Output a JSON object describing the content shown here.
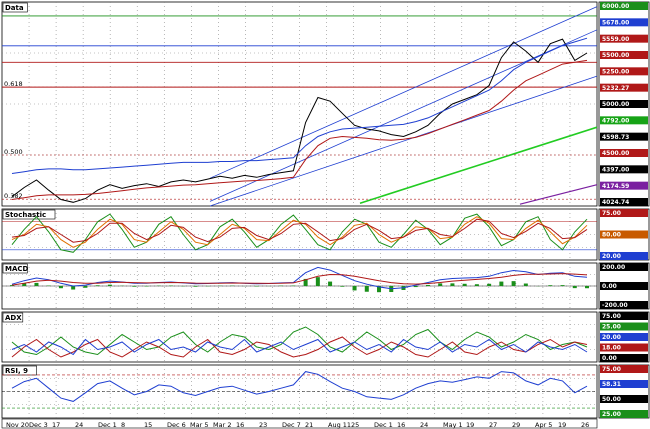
{
  "chart_data": {
    "type": "line",
    "title": "Data",
    "panes": [
      {
        "name": "Data",
        "fib_labels": [
          "0.618",
          "0.500",
          "0.382"
        ],
        "price_tags": [
          {
            "text": "6000.00",
            "color": "#1a8f1a"
          },
          {
            "text": "5678.00",
            "color": "#1f3fd1"
          },
          {
            "text": "5559.00",
            "color": "#b01818"
          },
          {
            "text": "5500.00",
            "color": "#b01818"
          },
          {
            "text": "5250.00",
            "color": "#b01818"
          },
          {
            "text": "5232.27",
            "color": "#b01818"
          },
          {
            "text": "5000.00",
            "color": "#000000"
          },
          {
            "text": "4792.00",
            "color": "#16a316"
          },
          {
            "text": "4598.73",
            "color": "#000000"
          },
          {
            "text": "4500.00",
            "color": "#b01818"
          },
          {
            "text": "4397.00",
            "color": "#000000"
          },
          {
            "text": "4174.59",
            "color": "#7a1fa0"
          },
          {
            "text": "4024.74",
            "color": "#000000"
          }
        ],
        "ylim": [
          3950,
          6150
        ],
        "series": [
          {
            "values": [
              4050,
              4150,
              4230,
              4120,
              4020,
              3990,
              4030,
              4120,
              4180,
              4140,
              4170,
              4190,
              4160,
              4210,
              4230,
              4210,
              4240,
              4270,
              4250,
              4280,
              4260,
              4290,
              4310,
              4330,
              4850,
              5120,
              5080,
              4950,
              4820,
              4780,
              4760,
              4720,
              4700,
              4750,
              4820,
              4950,
              5050,
              5100,
              5150,
              5250,
              5550,
              5720,
              5620,
              5500,
              5700,
              5750,
              5520,
              5600
            ],
            "color": "#000000"
          },
          {
            "values": [
              4020,
              4040,
              4060,
              4070,
              4070,
              4070,
              4075,
              4085,
              4100,
              4115,
              4130,
              4145,
              4155,
              4165,
              4175,
              4180,
              4190,
              4200,
              4210,
              4220,
              4225,
              4235,
              4245,
              4260,
              4450,
              4600,
              4680,
              4700,
              4690,
              4680,
              4665,
              4660,
              4670,
              4690,
              4730,
              4780,
              4830,
              4880,
              4930,
              4980,
              5080,
              5200,
              5300,
              5360,
              5420,
              5480,
              5500,
              5520
            ],
            "color": "#b01818"
          },
          {
            "values": [
              4300,
              4320,
              4340,
              4350,
              4350,
              4340,
              4340,
              4350,
              4360,
              4370,
              4380,
              4390,
              4400,
              4410,
              4420,
              4420,
              4420,
              4430,
              4430,
              4440,
              4440,
              4450,
              4460,
              4470,
              4600,
              4700,
              4750,
              4780,
              4790,
              4800,
              4810,
              4820,
              4830,
              4860,
              4900,
              4960,
              5020,
              5080,
              5140,
              5200,
              5300,
              5420,
              5500,
              5560,
              5620,
              5680,
              5720,
              5760
            ],
            "color": "#1f3fd1"
          }
        ]
      },
      {
        "name": "Stochastic",
        "price_tags": [
          {
            "text": "75.00",
            "color": "#b01818"
          },
          {
            "text": "80.00",
            "color": "#c85a00"
          },
          {
            "text": "20.00",
            "color": "#1f3fd1"
          }
        ],
        "ylim": [
          0,
          100
        ],
        "series": [
          {
            "values": [
              30,
              60,
              85,
              55,
              20,
              15,
              40,
              75,
              90,
              60,
              25,
              35,
              70,
              85,
              50,
              20,
              30,
              65,
              80,
              55,
              25,
              40,
              70,
              88,
              60,
              30,
              20,
              55,
              80,
              70,
              35,
              25,
              50,
              78,
              60,
              30,
              45,
              82,
              90,
              65,
              28,
              40,
              75,
              85,
              40,
              20,
              55,
              80
            ],
            "color": "#1a8f1a"
          },
          {
            "values": [
              40,
              50,
              70,
              65,
              40,
              25,
              35,
              60,
              80,
              70,
              40,
              35,
              55,
              75,
              60,
              35,
              30,
              50,
              70,
              62,
              40,
              38,
              58,
              78,
              70,
              45,
              30,
              45,
              68,
              72,
              50,
              35,
              45,
              65,
              62,
              42,
              45,
              70,
              85,
              72,
              42,
              40,
              62,
              78,
              55,
              32,
              45,
              68
            ],
            "color": "#e07000"
          },
          {
            "values": [
              45,
              48,
              62,
              65,
              50,
              35,
              38,
              52,
              72,
              72,
              52,
              40,
              50,
              68,
              64,
              45,
              36,
              45,
              62,
              64,
              48,
              40,
              52,
              70,
              72,
              55,
              38,
              42,
              60,
              70,
              58,
              42,
              45,
              58,
              62,
              50,
              46,
              62,
              80,
              76,
              52,
              44,
              56,
              72,
              62,
              42,
              44,
              60
            ],
            "color": "#b01818"
          }
        ]
      },
      {
        "name": "MACD",
        "price_tags": [
          {
            "text": "200.00",
            "color": "#000000"
          },
          {
            "text": "0.00",
            "color": "#000000"
          },
          {
            "text": "-200.00",
            "color": "#000000"
          }
        ],
        "ylim": [
          -260,
          260
        ],
        "series": [
          {
            "values": [
              20,
              60,
              90,
              70,
              30,
              0,
              10,
              40,
              55,
              45,
              30,
              30,
              40,
              45,
              35,
              25,
              28,
              35,
              38,
              32,
              25,
              28,
              35,
              40,
              150,
              210,
              180,
              120,
              60,
              20,
              -10,
              -30,
              -20,
              10,
              40,
              70,
              85,
              90,
              95,
              110,
              150,
              175,
              160,
              130,
              145,
              150,
              110,
              100
            ],
            "color": "#1f3fd1"
          },
          {
            "values": [
              10,
              30,
              55,
              65,
              55,
              40,
              30,
              32,
              40,
              42,
              38,
              35,
              36,
              40,
              38,
              33,
              31,
              32,
              34,
              33,
              30,
              29,
              31,
              35,
              70,
              110,
              130,
              128,
              110,
              85,
              60,
              38,
              25,
              22,
              28,
              40,
              55,
              65,
              75,
              85,
              100,
              120,
              132,
              132,
              136,
              140,
              134,
              125
            ],
            "color": "#b01818"
          }
        ]
      },
      {
        "name": "ADX",
        "price_tags": [
          {
            "text": "75.00",
            "color": "#000000"
          },
          {
            "text": "25.00",
            "color": "#1a8f1a"
          },
          {
            "text": "20.00",
            "color": "#1f3fd1"
          },
          {
            "text": "18.00",
            "color": "#b01818"
          },
          {
            "text": "0.00",
            "color": "#000000"
          }
        ],
        "ylim": [
          0,
          100
        ],
        "series": [
          {
            "values": [
              40,
              20,
              15,
              30,
              50,
              30,
              20,
              15,
              35,
              55,
              40,
              25,
              30,
              50,
              60,
              35,
              20,
              40,
              55,
              50,
              30,
              25,
              35,
              60,
              70,
              55,
              30,
              20,
              40,
              60,
              45,
              25,
              35,
              55,
              65,
              40,
              25,
              45,
              60,
              50,
              30,
              40,
              55,
              45,
              25,
              35,
              40,
              30
            ],
            "color": "#1a8f1a"
          },
          {
            "values": [
              10,
              30,
              45,
              25,
              10,
              20,
              35,
              45,
              20,
              10,
              25,
              40,
              30,
              15,
              10,
              30,
              45,
              20,
              15,
              25,
              40,
              35,
              20,
              10,
              15,
              25,
              40,
              50,
              30,
              15,
              25,
              40,
              30,
              15,
              10,
              25,
              40,
              20,
              15,
              30,
              40,
              25,
              20,
              35,
              45,
              30,
              40,
              35
            ],
            "color": "#b01818"
          },
          {
            "values": [
              25,
              35,
              20,
              40,
              30,
              15,
              45,
              25,
              30,
              40,
              20,
              35,
              45,
              25,
              30,
              20,
              40,
              30,
              25,
              45,
              20,
              30,
              40,
              25,
              35,
              45,
              20,
              30,
              40,
              25,
              35,
              20,
              45,
              30,
              25,
              40,
              20,
              35,
              30,
              45,
              25,
              35,
              20,
              40,
              30,
              25,
              35,
              20
            ],
            "color": "#1f3fd1"
          }
        ]
      },
      {
        "name": "RSI, 9",
        "price_tags": [
          {
            "text": "75.00",
            "color": "#b01818"
          },
          {
            "text": "58.31",
            "color": "#1f3fd1"
          },
          {
            "text": "50.00",
            "color": "#000000"
          },
          {
            "text": "25.00",
            "color": "#1a8f1a"
          }
        ],
        "ylim": [
          10,
          90
        ],
        "series": [
          {
            "values": [
              55,
              65,
              70,
              55,
              40,
              35,
              48,
              62,
              66,
              55,
              45,
              50,
              60,
              58,
              48,
              44,
              50,
              56,
              58,
              52,
              46,
              50,
              55,
              60,
              80,
              76,
              65,
              55,
              50,
              42,
              40,
              38,
              45,
              55,
              62,
              66,
              64,
              68,
              72,
              70,
              80,
              78,
              66,
              60,
              70,
              66,
              48,
              58
            ],
            "color": "#1f3fd1"
          }
        ]
      }
    ],
    "x_tick_labels": [
      "Nov 20",
      "Dec 3",
      "17",
      "24",
      "Dec 1",
      "8",
      "15",
      "Dec 6",
      "Mar 5",
      "Mar 2",
      "16",
      "23",
      "Dec 7",
      "21",
      "Aug 11",
      "25",
      "Dec 1",
      "16",
      "24",
      "May 1",
      "19",
      "27",
      "29",
      "Apr 5",
      "19",
      "26"
    ]
  }
}
